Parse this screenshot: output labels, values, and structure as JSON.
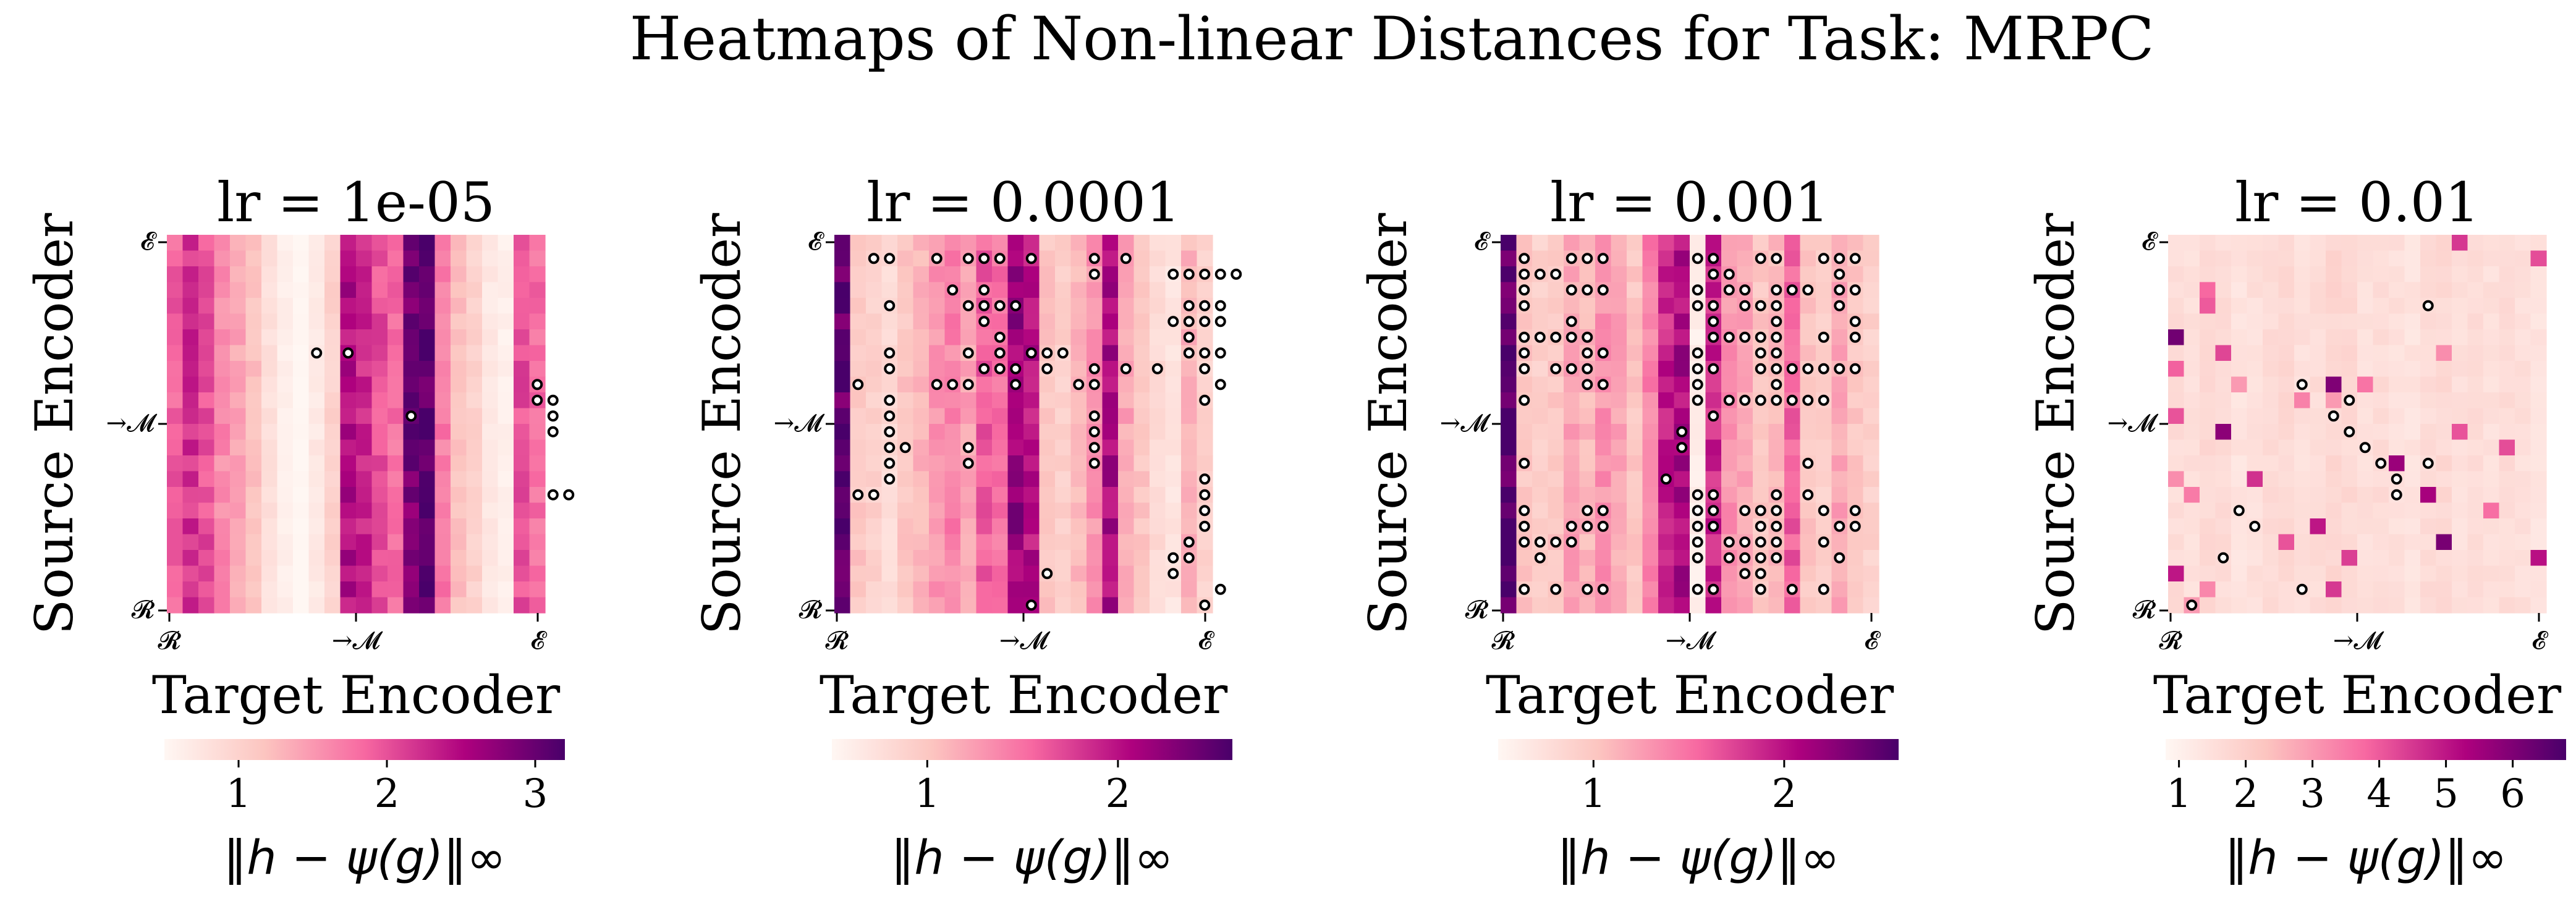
{
  "title": "Heatmaps of Non-linear Distances for Task: MRPC",
  "colors": {
    "c0": "#fff7f3",
    "c1": "#fcc5c0",
    "c2": "#f768a1",
    "c3": "#ae017e",
    "c4": "#49006a",
    "marker_stroke": "#000000"
  },
  "chart_data": [
    {
      "type": "heatmap",
      "title": "lr = 1e-05",
      "xlabel": "Target Encoder",
      "ylabel": "Source Encoder",
      "x_ticks": [
        "𝓡",
        "→𝓜",
        "𝓔"
      ],
      "y_ticks": [
        "𝓔",
        "→𝓜",
        "𝓡"
      ],
      "grid_size": 24,
      "colorbar": {
        "label": "‖h − ψ(g)‖∞",
        "range": [
          0.5,
          3.2
        ],
        "ticks": [
          "1",
          "2",
          "3"
        ],
        "tick_values": [
          1,
          2,
          3
        ]
      },
      "column_profile": [
        1.9,
        2.2,
        2.0,
        1.6,
        1.4,
        1.2,
        0.8,
        0.6,
        0.5,
        0.7,
        1.0,
        2.5,
        2.3,
        2.0,
        1.8,
        2.9,
        3.1,
        1.7,
        1.2,
        1.0,
        0.7,
        0.6,
        2.0,
        1.8
      ],
      "markers": [
        [
          7,
          9
        ],
        [
          7,
          11
        ],
        [
          11,
          15
        ],
        [
          9,
          23
        ],
        [
          10,
          23
        ],
        [
          10,
          24
        ],
        [
          11,
          24
        ],
        [
          12,
          24
        ],
        [
          16,
          24
        ],
        [
          16,
          25
        ]
      ]
    },
    {
      "type": "heatmap",
      "title": "lr = 0.0001",
      "xlabel": "Target Encoder",
      "ylabel": "Source Encoder",
      "x_ticks": [
        "𝓡",
        "→𝓜",
        "𝓔"
      ],
      "y_ticks": [
        "𝓔",
        "→𝓜",
        "𝓡"
      ],
      "grid_size": 24,
      "colorbar": {
        "label": "‖h − ψ(g)‖∞",
        "range": [
          0.5,
          2.6
        ],
        "ticks": [
          "1",
          "2"
        ],
        "tick_values": [
          1,
          2
        ]
      },
      "column_profile": [
        2.5,
        1.0,
        0.9,
        0.8,
        1.0,
        1.1,
        1.3,
        1.4,
        1.2,
        1.6,
        1.5,
        2.2,
        2.0,
        1.0,
        0.9,
        1.1,
        1.3,
        2.1,
        1.2,
        1.0,
        0.8,
        0.7,
        1.1,
        0.9
      ],
      "markers": [
        [
          1,
          2
        ],
        [
          1,
          3
        ],
        [
          1,
          6
        ],
        [
          1,
          8
        ],
        [
          1,
          9
        ],
        [
          1,
          10
        ],
        [
          1,
          12
        ],
        [
          1,
          16
        ],
        [
          1,
          18
        ],
        [
          2,
          16
        ],
        [
          2,
          21
        ],
        [
          2,
          22
        ],
        [
          2,
          23
        ],
        [
          2,
          24
        ],
        [
          2,
          25
        ],
        [
          3,
          7
        ],
        [
          3,
          9
        ],
        [
          4,
          3
        ],
        [
          4,
          8
        ],
        [
          4,
          9
        ],
        [
          4,
          10
        ],
        [
          4,
          11
        ],
        [
          4,
          22
        ],
        [
          4,
          23
        ],
        [
          4,
          24
        ],
        [
          5,
          9
        ],
        [
          5,
          21
        ],
        [
          5,
          22
        ],
        [
          5,
          23
        ],
        [
          5,
          24
        ],
        [
          6,
          10
        ],
        [
          6,
          22
        ],
        [
          7,
          3
        ],
        [
          7,
          8
        ],
        [
          7,
          10
        ],
        [
          7,
          12
        ],
        [
          7,
          13
        ],
        [
          7,
          14
        ],
        [
          7,
          22
        ],
        [
          7,
          23
        ],
        [
          7,
          24
        ],
        [
          8,
          3
        ],
        [
          8,
          9
        ],
        [
          8,
          10
        ],
        [
          8,
          11
        ],
        [
          8,
          13
        ],
        [
          8,
          16
        ],
        [
          8,
          18
        ],
        [
          8,
          20
        ],
        [
          8,
          23
        ],
        [
          9,
          1
        ],
        [
          9,
          6
        ],
        [
          9,
          7
        ],
        [
          9,
          8
        ],
        [
          9,
          11
        ],
        [
          9,
          15
        ],
        [
          9,
          16
        ],
        [
          9,
          24
        ],
        [
          10,
          3
        ],
        [
          10,
          23
        ],
        [
          11,
          3
        ],
        [
          11,
          16
        ],
        [
          12,
          3
        ],
        [
          12,
          16
        ],
        [
          13,
          3
        ],
        [
          13,
          4
        ],
        [
          13,
          8
        ],
        [
          13,
          16
        ],
        [
          14,
          3
        ],
        [
          14,
          8
        ],
        [
          14,
          16
        ],
        [
          15,
          3
        ],
        [
          15,
          23
        ],
        [
          16,
          1
        ],
        [
          16,
          2
        ],
        [
          16,
          23
        ],
        [
          17,
          23
        ],
        [
          18,
          23
        ],
        [
          19,
          22
        ],
        [
          20,
          21
        ],
        [
          20,
          22
        ],
        [
          21,
          13
        ],
        [
          21,
          21
        ],
        [
          22,
          24
        ],
        [
          23,
          12
        ],
        [
          23,
          23
        ]
      ]
    },
    {
      "type": "heatmap",
      "title": "lr = 0.001",
      "xlabel": "Target Encoder",
      "ylabel": "Source Encoder",
      "x_ticks": [
        "𝓡",
        "→𝓜",
        "𝓔"
      ],
      "y_ticks": [
        "𝓔",
        "→𝓜",
        "𝓡"
      ],
      "grid_size": 24,
      "colorbar": {
        "label": "‖h − ψ(g)‖∞",
        "range": [
          0.5,
          2.6
        ],
        "ticks": [
          "1",
          "2"
        ],
        "tick_values": [
          1,
          2
        ]
      },
      "column_profile": [
        2.5,
        1.0,
        0.9,
        1.0,
        1.2,
        1.1,
        1.3,
        1.2,
        1.0,
        1.4,
        1.9,
        2.1,
        0.6,
        1.9,
        1.3,
        1.2,
        1.0,
        1.1,
        1.6,
        1.0,
        0.9,
        1.2,
        1.0,
        0.9
      ],
      "markers": [
        [
          1,
          1
        ],
        [
          1,
          4
        ],
        [
          1,
          5
        ],
        [
          1,
          6
        ],
        [
          1,
          12
        ],
        [
          1,
          13
        ],
        [
          1,
          16
        ],
        [
          1,
          17
        ],
        [
          1,
          20
        ],
        [
          1,
          21
        ],
        [
          1,
          22
        ],
        [
          2,
          1
        ],
        [
          2,
          2
        ],
        [
          2,
          3
        ],
        [
          2,
          13
        ],
        [
          2,
          14
        ],
        [
          2,
          21
        ],
        [
          3,
          1
        ],
        [
          3,
          4
        ],
        [
          3,
          5
        ],
        [
          3,
          6
        ],
        [
          3,
          12
        ],
        [
          3,
          14
        ],
        [
          3,
          15
        ],
        [
          3,
          17
        ],
        [
          3,
          18
        ],
        [
          3,
          19
        ],
        [
          3,
          21
        ],
        [
          3,
          22
        ],
        [
          4,
          1
        ],
        [
          4,
          12
        ],
        [
          4,
          13
        ],
        [
          4,
          15
        ],
        [
          4,
          16
        ],
        [
          4,
          17
        ],
        [
          4,
          21
        ],
        [
          5,
          4
        ],
        [
          5,
          13
        ],
        [
          5,
          17
        ],
        [
          5,
          22
        ],
        [
          6,
          1
        ],
        [
          6,
          2
        ],
        [
          6,
          3
        ],
        [
          6,
          4
        ],
        [
          6,
          5
        ],
        [
          6,
          13
        ],
        [
          6,
          14
        ],
        [
          6,
          15
        ],
        [
          6,
          16
        ],
        [
          6,
          17
        ],
        [
          6,
          20
        ],
        [
          6,
          22
        ],
        [
          7,
          1
        ],
        [
          7,
          5
        ],
        [
          7,
          6
        ],
        [
          7,
          12
        ],
        [
          7,
          16
        ],
        [
          7,
          17
        ],
        [
          8,
          1
        ],
        [
          8,
          3
        ],
        [
          8,
          4
        ],
        [
          8,
          5
        ],
        [
          8,
          12
        ],
        [
          8,
          13
        ],
        [
          8,
          16
        ],
        [
          8,
          17
        ],
        [
          8,
          18
        ],
        [
          8,
          19
        ],
        [
          8,
          20
        ],
        [
          8,
          21
        ],
        [
          8,
          22
        ],
        [
          9,
          5
        ],
        [
          9,
          6
        ],
        [
          9,
          12
        ],
        [
          9,
          17
        ],
        [
          10,
          1
        ],
        [
          10,
          12
        ],
        [
          10,
          14
        ],
        [
          10,
          15
        ],
        [
          10,
          16
        ],
        [
          10,
          17
        ],
        [
          10,
          18
        ],
        [
          10,
          19
        ],
        [
          10,
          20
        ],
        [
          11,
          13
        ],
        [
          12,
          11
        ],
        [
          13,
          11
        ],
        [
          14,
          1
        ],
        [
          14,
          19
        ],
        [
          15,
          10
        ],
        [
          16,
          12
        ],
        [
          16,
          13
        ],
        [
          16,
          17
        ],
        [
          16,
          19
        ],
        [
          17,
          1
        ],
        [
          17,
          5
        ],
        [
          17,
          6
        ],
        [
          17,
          12
        ],
        [
          17,
          13
        ],
        [
          17,
          15
        ],
        [
          17,
          16
        ],
        [
          17,
          17
        ],
        [
          17,
          20
        ],
        [
          17,
          22
        ],
        [
          18,
          1
        ],
        [
          18,
          4
        ],
        [
          18,
          5
        ],
        [
          18,
          6
        ],
        [
          18,
          12
        ],
        [
          18,
          13
        ],
        [
          18,
          16
        ],
        [
          18,
          17
        ],
        [
          18,
          21
        ],
        [
          18,
          22
        ],
        [
          19,
          1
        ],
        [
          19,
          2
        ],
        [
          19,
          3
        ],
        [
          19,
          4
        ],
        [
          19,
          12
        ],
        [
          19,
          14
        ],
        [
          19,
          15
        ],
        [
          19,
          16
        ],
        [
          19,
          17
        ],
        [
          19,
          20
        ],
        [
          20,
          2
        ],
        [
          20,
          12
        ],
        [
          20,
          14
        ],
        [
          20,
          15
        ],
        [
          20,
          16
        ],
        [
          20,
          17
        ],
        [
          20,
          21
        ],
        [
          21,
          15
        ],
        [
          21,
          16
        ],
        [
          22,
          1
        ],
        [
          22,
          3
        ],
        [
          22,
          5
        ],
        [
          22,
          6
        ],
        [
          22,
          12
        ],
        [
          22,
          13
        ],
        [
          22,
          16
        ],
        [
          22,
          18
        ],
        [
          22,
          20
        ]
      ]
    },
    {
      "type": "heatmap",
      "title": "lr = 0.01",
      "xlabel": "Target Encoder",
      "ylabel": "Source Encoder",
      "x_ticks": [
        "𝓡",
        "→𝓜",
        "𝓔"
      ],
      "y_ticks": [
        "𝓔",
        "→𝓜",
        "𝓡"
      ],
      "grid_size": 24,
      "colorbar": {
        "label": "‖h − ψ(g)‖∞",
        "range": [
          0.8,
          6.8
        ],
        "ticks": [
          "1",
          "2",
          "3",
          "4",
          "5",
          "6"
        ],
        "tick_values": [
          1,
          2,
          3,
          4,
          5,
          6
        ]
      },
      "column_profile": [
        1.6,
        1.5,
        1.7,
        1.6,
        1.4,
        1.5,
        1.6,
        1.7,
        1.5,
        1.6,
        1.8,
        1.7,
        1.5,
        1.6,
        1.5,
        1.4,
        1.6,
        1.7,
        1.5,
        1.6,
        1.5,
        1.6,
        1.5,
        1.4
      ],
      "hot_cells": [
        [
          0,
          18,
          4.5
        ],
        [
          1,
          23,
          4.2
        ],
        [
          3,
          2,
          3.8
        ],
        [
          4,
          2,
          4.0
        ],
        [
          6,
          0,
          6.2
        ],
        [
          7,
          3,
          4.3
        ],
        [
          7,
          17,
          3.2
        ],
        [
          8,
          0,
          3.9
        ],
        [
          9,
          4,
          3.0
        ],
        [
          9,
          10,
          6.0
        ],
        [
          9,
          12,
          3.6
        ],
        [
          10,
          8,
          3.4
        ],
        [
          10,
          10,
          3.0
        ],
        [
          11,
          0,
          4.1
        ],
        [
          12,
          3,
          5.8
        ],
        [
          12,
          18,
          4.1
        ],
        [
          13,
          21,
          4.2
        ],
        [
          14,
          14,
          5.6
        ],
        [
          15,
          0,
          3.2
        ],
        [
          15,
          5,
          4.6
        ],
        [
          16,
          1,
          3.5
        ],
        [
          16,
          16,
          5.4
        ],
        [
          17,
          20,
          3.7
        ],
        [
          18,
          9,
          5.0
        ],
        [
          19,
          7,
          4.1
        ],
        [
          19,
          17,
          6.1
        ],
        [
          20,
          23,
          5.1
        ],
        [
          20,
          11,
          4.4
        ],
        [
          21,
          0,
          5.0
        ],
        [
          22,
          2,
          3.3
        ],
        [
          22,
          10,
          4.5
        ],
        [
          23,
          1,
          3.0
        ]
      ],
      "markers": [
        [
          4,
          16
        ],
        [
          9,
          8
        ],
        [
          10,
          11
        ],
        [
          11,
          10
        ],
        [
          12,
          11
        ],
        [
          13,
          12
        ],
        [
          14,
          13
        ],
        [
          14,
          16
        ],
        [
          15,
          14
        ],
        [
          16,
          14
        ],
        [
          17,
          4
        ],
        [
          18,
          5
        ],
        [
          20,
          3
        ],
        [
          22,
          8
        ],
        [
          23,
          1
        ]
      ]
    }
  ]
}
